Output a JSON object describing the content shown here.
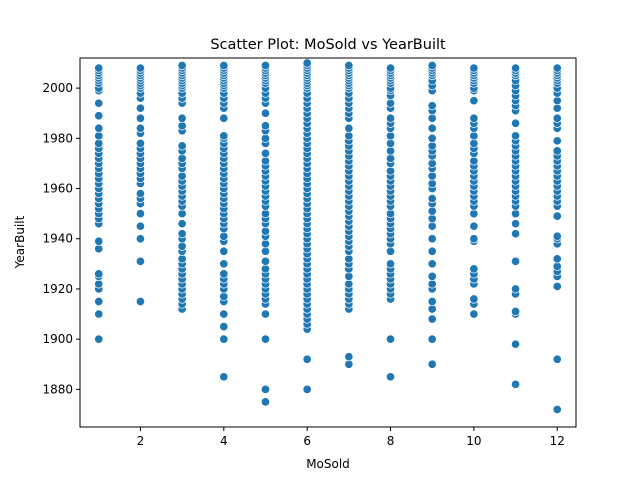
{
  "chart_data": {
    "type": "scatter",
    "title": "Scatter Plot: MoSold vs YearBuilt",
    "xlabel": "MoSold",
    "ylabel": "YearBuilt",
    "xlim": [
      0.55,
      12.45
    ],
    "ylim": [
      1865,
      2012
    ],
    "grid": false,
    "xticks": [
      2,
      4,
      6,
      8,
      10,
      12
    ],
    "yticks": [
      1880,
      1900,
      1920,
      1940,
      1960,
      1980,
      2000
    ],
    "marker_color": "#1f77b4",
    "marker_edge_color": "#ffffff",
    "series": [
      {
        "x": 1,
        "years": [
          1900,
          1910,
          1915,
          1920,
          1922,
          1925,
          1926,
          1936,
          1939,
          1946,
          1948,
          1950,
          1952,
          1954,
          1956,
          1958,
          1960,
          1962,
          1964,
          1966,
          1968,
          1970,
          1972,
          1974,
          1976,
          1978,
          1981,
          1984,
          1989,
          1994,
          1999,
          2000,
          2002,
          2003,
          2004,
          2005,
          2006,
          2007,
          2008
        ]
      },
      {
        "x": 2,
        "years": [
          1915,
          1931,
          1940,
          1945,
          1950,
          1954,
          1956,
          1958,
          1962,
          1964,
          1966,
          1968,
          1970,
          1972,
          1974,
          1976,
          1978,
          1982,
          1984,
          1988,
          1992,
          1996,
          1998,
          2000,
          2001,
          2002,
          2003,
          2004,
          2005,
          2006,
          2007,
          2008
        ]
      },
      {
        "x": 3,
        "years": [
          1912,
          1914,
          1916,
          1918,
          1920,
          1922,
          1924,
          1926,
          1928,
          1930,
          1932,
          1935,
          1937,
          1940,
          1942,
          1946,
          1950,
          1953,
          1955,
          1957,
          1959,
          1961,
          1963,
          1965,
          1968,
          1970,
          1972,
          1975,
          1977,
          1983,
          1985,
          1988,
          1994,
          1996,
          1998,
          2000,
          2001,
          2002,
          2003,
          2004,
          2005,
          2006,
          2007,
          2008,
          2009
        ]
      },
      {
        "x": 4,
        "years": [
          1885,
          1900,
          1905,
          1910,
          1915,
          1917,
          1920,
          1922,
          1924,
          1926,
          1930,
          1935,
          1939,
          1941,
          1944,
          1946,
          1948,
          1950,
          1952,
          1954,
          1956,
          1958,
          1960,
          1962,
          1964,
          1966,
          1968,
          1970,
          1972,
          1974,
          1976,
          1978,
          1980,
          1981,
          1988,
          1992,
          1994,
          1996,
          1998,
          2000,
          2001,
          2002,
          2003,
          2004,
          2005,
          2006,
          2007,
          2008,
          2009
        ]
      },
      {
        "x": 5,
        "years": [
          1875,
          1880,
          1900,
          1910,
          1914,
          1916,
          1918,
          1920,
          1922,
          1924,
          1926,
          1928,
          1931,
          1935,
          1938,
          1941,
          1943,
          1946,
          1948,
          1950,
          1953,
          1955,
          1957,
          1959,
          1961,
          1963,
          1965,
          1967,
          1969,
          1971,
          1974,
          1978,
          1980,
          1983,
          1985,
          1990,
          1994,
          1996,
          1998,
          2000,
          2002,
          2003,
          2004,
          2005,
          2006,
          2007,
          2008,
          2009
        ]
      },
      {
        "x": 6,
        "years": [
          1880,
          1892,
          1904,
          1906,
          1908,
          1910,
          1912,
          1914,
          1916,
          1918,
          1920,
          1922,
          1924,
          1926,
          1928,
          1930,
          1932,
          1934,
          1936,
          1938,
          1940,
          1942,
          1944,
          1946,
          1948,
          1950,
          1952,
          1954,
          1956,
          1958,
          1960,
          1962,
          1964,
          1966,
          1968,
          1970,
          1972,
          1974,
          1976,
          1978,
          1980,
          1982,
          1984,
          1986,
          1988,
          1990,
          1992,
          1994,
          1996,
          1998,
          2000,
          2001,
          2002,
          2003,
          2004,
          2005,
          2006,
          2007,
          2008,
          2009,
          2010
        ]
      },
      {
        "x": 7,
        "years": [
          1890,
          1893,
          1912,
          1914,
          1916,
          1918,
          1920,
          1922,
          1925,
          1928,
          1930,
          1932,
          1935,
          1937,
          1939,
          1941,
          1943,
          1945,
          1947,
          1949,
          1951,
          1953,
          1955,
          1957,
          1959,
          1961,
          1963,
          1965,
          1967,
          1969,
          1971,
          1973,
          1975,
          1977,
          1979,
          1981,
          1984,
          1988,
          1990,
          1992,
          1994,
          1996,
          1998,
          2000,
          2001,
          2002,
          2003,
          2004,
          2005,
          2006,
          2007,
          2008,
          2009
        ]
      },
      {
        "x": 8,
        "years": [
          1885,
          1900,
          1916,
          1918,
          1920,
          1922,
          1924,
          1926,
          1928,
          1930,
          1935,
          1938,
          1940,
          1942,
          1944,
          1946,
          1948,
          1950,
          1953,
          1955,
          1957,
          1959,
          1961,
          1963,
          1965,
          1967,
          1970,
          1972,
          1975,
          1978,
          1981,
          1984,
          1986,
          1988,
          1992,
          1994,
          1997,
          1999,
          2000,
          2002,
          2003,
          2004,
          2005,
          2006,
          2007,
          2008
        ]
      },
      {
        "x": 9,
        "years": [
          1890,
          1900,
          1908,
          1912,
          1915,
          1920,
          1922,
          1925,
          1930,
          1935,
          1940,
          1945,
          1948,
          1951,
          1954,
          1956,
          1960,
          1962,
          1965,
          1968,
          1970,
          1973,
          1975,
          1977,
          1980,
          1984,
          1988,
          1991,
          1993,
          1999,
          2001,
          2003,
          2005,
          2006,
          2007,
          2008,
          2009
        ]
      },
      {
        "x": 10,
        "years": [
          1910,
          1914,
          1916,
          1922,
          1924,
          1926,
          1928,
          1939,
          1940,
          1945,
          1950,
          1953,
          1955,
          1957,
          1959,
          1961,
          1963,
          1965,
          1967,
          1969,
          1971,
          1974,
          1976,
          1978,
          1981,
          1984,
          1986,
          1988,
          1995,
          1999,
          2000,
          2002,
          2003,
          2004,
          2005,
          2006,
          2007,
          2008
        ]
      },
      {
        "x": 11,
        "years": [
          1882,
          1898,
          1910,
          1911,
          1918,
          1920,
          1931,
          1942,
          1946,
          1950,
          1953,
          1955,
          1957,
          1959,
          1961,
          1963,
          1965,
          1967,
          1969,
          1971,
          1973,
          1975,
          1977,
          1979,
          1981,
          1986,
          1991,
          1993,
          1995,
          1997,
          1999,
          2001,
          2003,
          2005,
          2006,
          2007,
          2008
        ]
      },
      {
        "x": 12,
        "years": [
          1872,
          1892,
          1921,
          1925,
          1927,
          1929,
          1932,
          1938,
          1940,
          1941,
          1949,
          1953,
          1955,
          1957,
          1959,
          1961,
          1963,
          1965,
          1967,
          1969,
          1971,
          1973,
          1975,
          1979,
          1984,
          1986,
          1988,
          1992,
          1995,
          1998,
          2000,
          2002,
          2003,
          2004,
          2005,
          2006,
          2007,
          2008
        ]
      }
    ]
  }
}
